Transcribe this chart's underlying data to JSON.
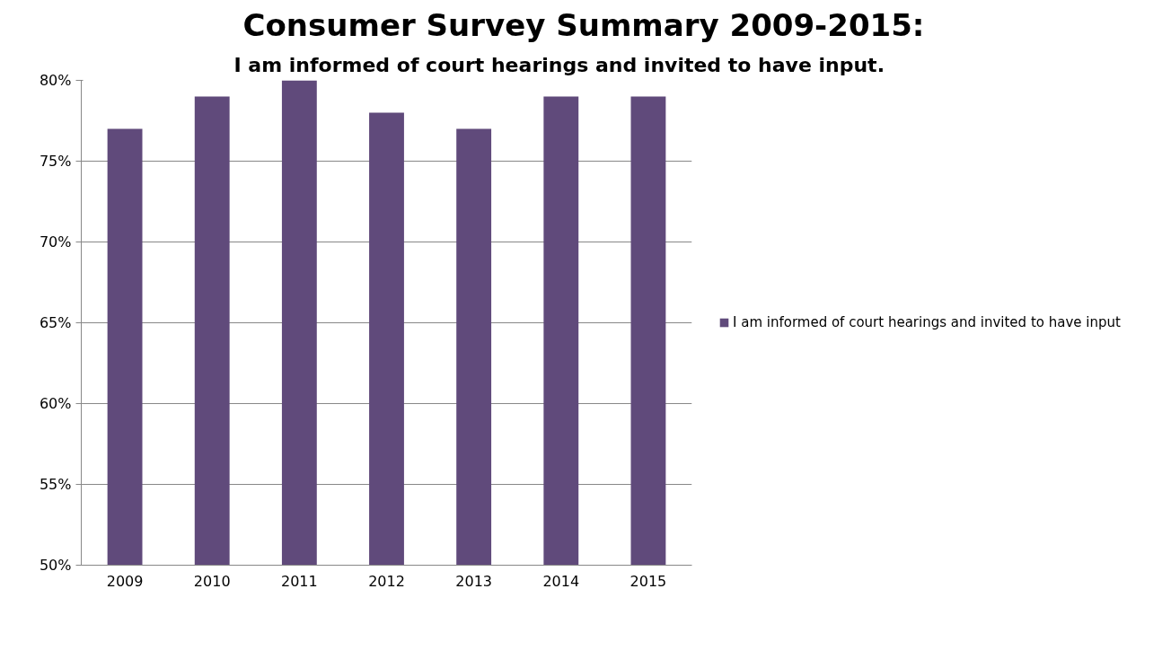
{
  "chart_data": {
    "type": "bar",
    "title": "Consumer Survey Summary 2009-2015:",
    "subtitle": "I am informed of court hearings and invited to have input.",
    "categories": [
      "2009",
      "2010",
      "2011",
      "2012",
      "2013",
      "2014",
      "2015"
    ],
    "series": [
      {
        "name": "I am informed of court hearings and invited to have input",
        "color": "#604a7b",
        "values": [
          77,
          79,
          80,
          78,
          77,
          79,
          79
        ]
      }
    ],
    "ylim": [
      50,
      80
    ],
    "yticks": [
      {
        "value": 50,
        "label": "50%"
      },
      {
        "value": 55,
        "label": "55%"
      },
      {
        "value": 60,
        "label": "60%"
      },
      {
        "value": 65,
        "label": "65%"
      },
      {
        "value": 70,
        "label": "70%"
      },
      {
        "value": 75,
        "label": "75%"
      },
      {
        "value": 80,
        "label": "80%"
      }
    ],
    "grid": "y",
    "legend": "right"
  }
}
